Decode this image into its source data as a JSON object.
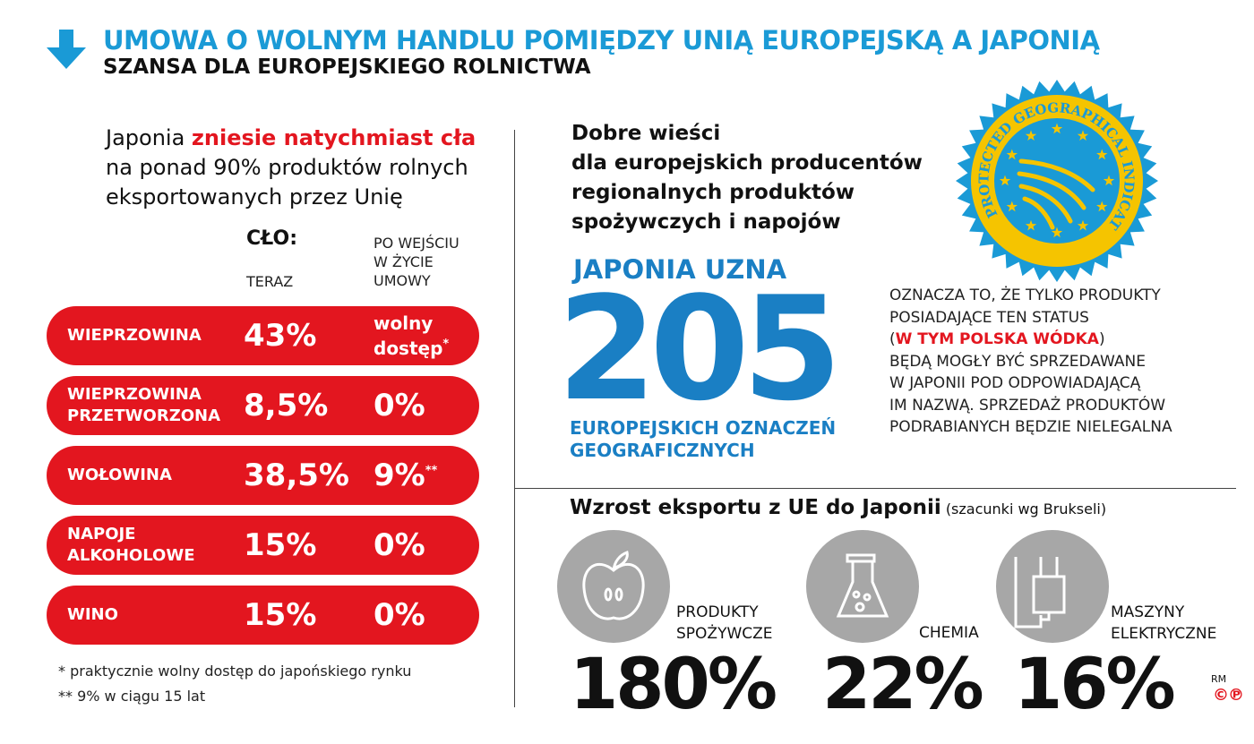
{
  "header": {
    "title": "UMOWA O WOLNYM HANDLU POMIĘDZY UNIĄ EUROPEJSKĄ A JAPONIĄ",
    "subtitle": "SZANSA DLA EUROPEJSKIEGO ROLNICTWA",
    "icon": "arrow-down-icon",
    "accent": "#1a9ad6"
  },
  "left": {
    "intro_before": "Japonia ",
    "intro_highlight": "zniesie natychmiast cła",
    "intro_after": " na ponad 90% produktów rolnych eksportowanych przez Unię",
    "col_title": "CŁO:",
    "col_now": "TERAZ",
    "col_after": [
      "PO WEJŚCIU",
      "W ŻYCIE",
      "UMOWY"
    ],
    "rows": [
      {
        "label": [
          "WIEPRZOWINA"
        ],
        "now": "43%",
        "after": [
          "wolny",
          "dostęp"
        ],
        "mark": "*"
      },
      {
        "label": [
          "WIEPRZOWINA",
          "PRZETWORZONA"
        ],
        "now": "8,5%",
        "after": [
          "0%"
        ],
        "mark": ""
      },
      {
        "label": [
          "WOŁOWINA"
        ],
        "now": "38,5%",
        "after": [
          "9%"
        ],
        "mark": "**"
      },
      {
        "label": [
          "NAPOJE",
          "ALKOHOLOWE"
        ],
        "now": "15%",
        "after": [
          "0%"
        ],
        "mark": ""
      },
      {
        "label": [
          "WINO"
        ],
        "now": "15%",
        "after": [
          "0%"
        ],
        "mark": ""
      }
    ],
    "footnotes": [
      "* praktycznie wolny dostęp do japońskiego rynku",
      "** 9% w ciągu 15 lat"
    ],
    "row_color": "#e3161f"
  },
  "right": {
    "good_news": [
      "Dobre wieści",
      "dla europejskich producentów",
      "regionalnych produktów",
      "spożywczych i napojów"
    ],
    "seal_text": "PROTECTED GEOGRAPHICAL INDICATION",
    "recognize": "JAPONIA UZNA",
    "number": "205",
    "number_caption": [
      "EUROPEJSKICH OZNACZEŃ",
      "GEOGRAFICZNYCH"
    ],
    "desc_1": "OZNACZA TO, ŻE TYLKO PRODUKTY",
    "desc_2": "POSIADAJĄCE TEN STATUS",
    "desc_3_open": "(",
    "desc_3_red": "W TYM POLSKA WÓDKA",
    "desc_3_close": ")",
    "desc_rest": [
      "BĘDĄ MOGŁY BYĆ SPRZEDAWANE",
      "W JAPONII POD ODPOWIADAJĄCĄ",
      "IM NAZWĄ. SPRZEDAŻ PRODUKTÓW",
      "PODRABIANYCH BĘDZIE NIELEGALNA"
    ]
  },
  "exports": {
    "title": "Wzrost eksportu z UE do Japonii",
    "note": "(szacunki wg Brukseli)",
    "items": [
      {
        "icon": "apple-icon",
        "label": [
          "PRODUKTY",
          "SPOŻYWCZE"
        ],
        "value": "180%"
      },
      {
        "icon": "flask-icon",
        "label": [
          "CHEMIA"
        ],
        "value": "22%"
      },
      {
        "icon": "plug-icon",
        "label": [
          "MASZYNY",
          "ELEKTRYCZNE"
        ],
        "value": "16%"
      }
    ]
  },
  "credit": {
    "initials": "RM",
    "symbols": "©℗"
  }
}
